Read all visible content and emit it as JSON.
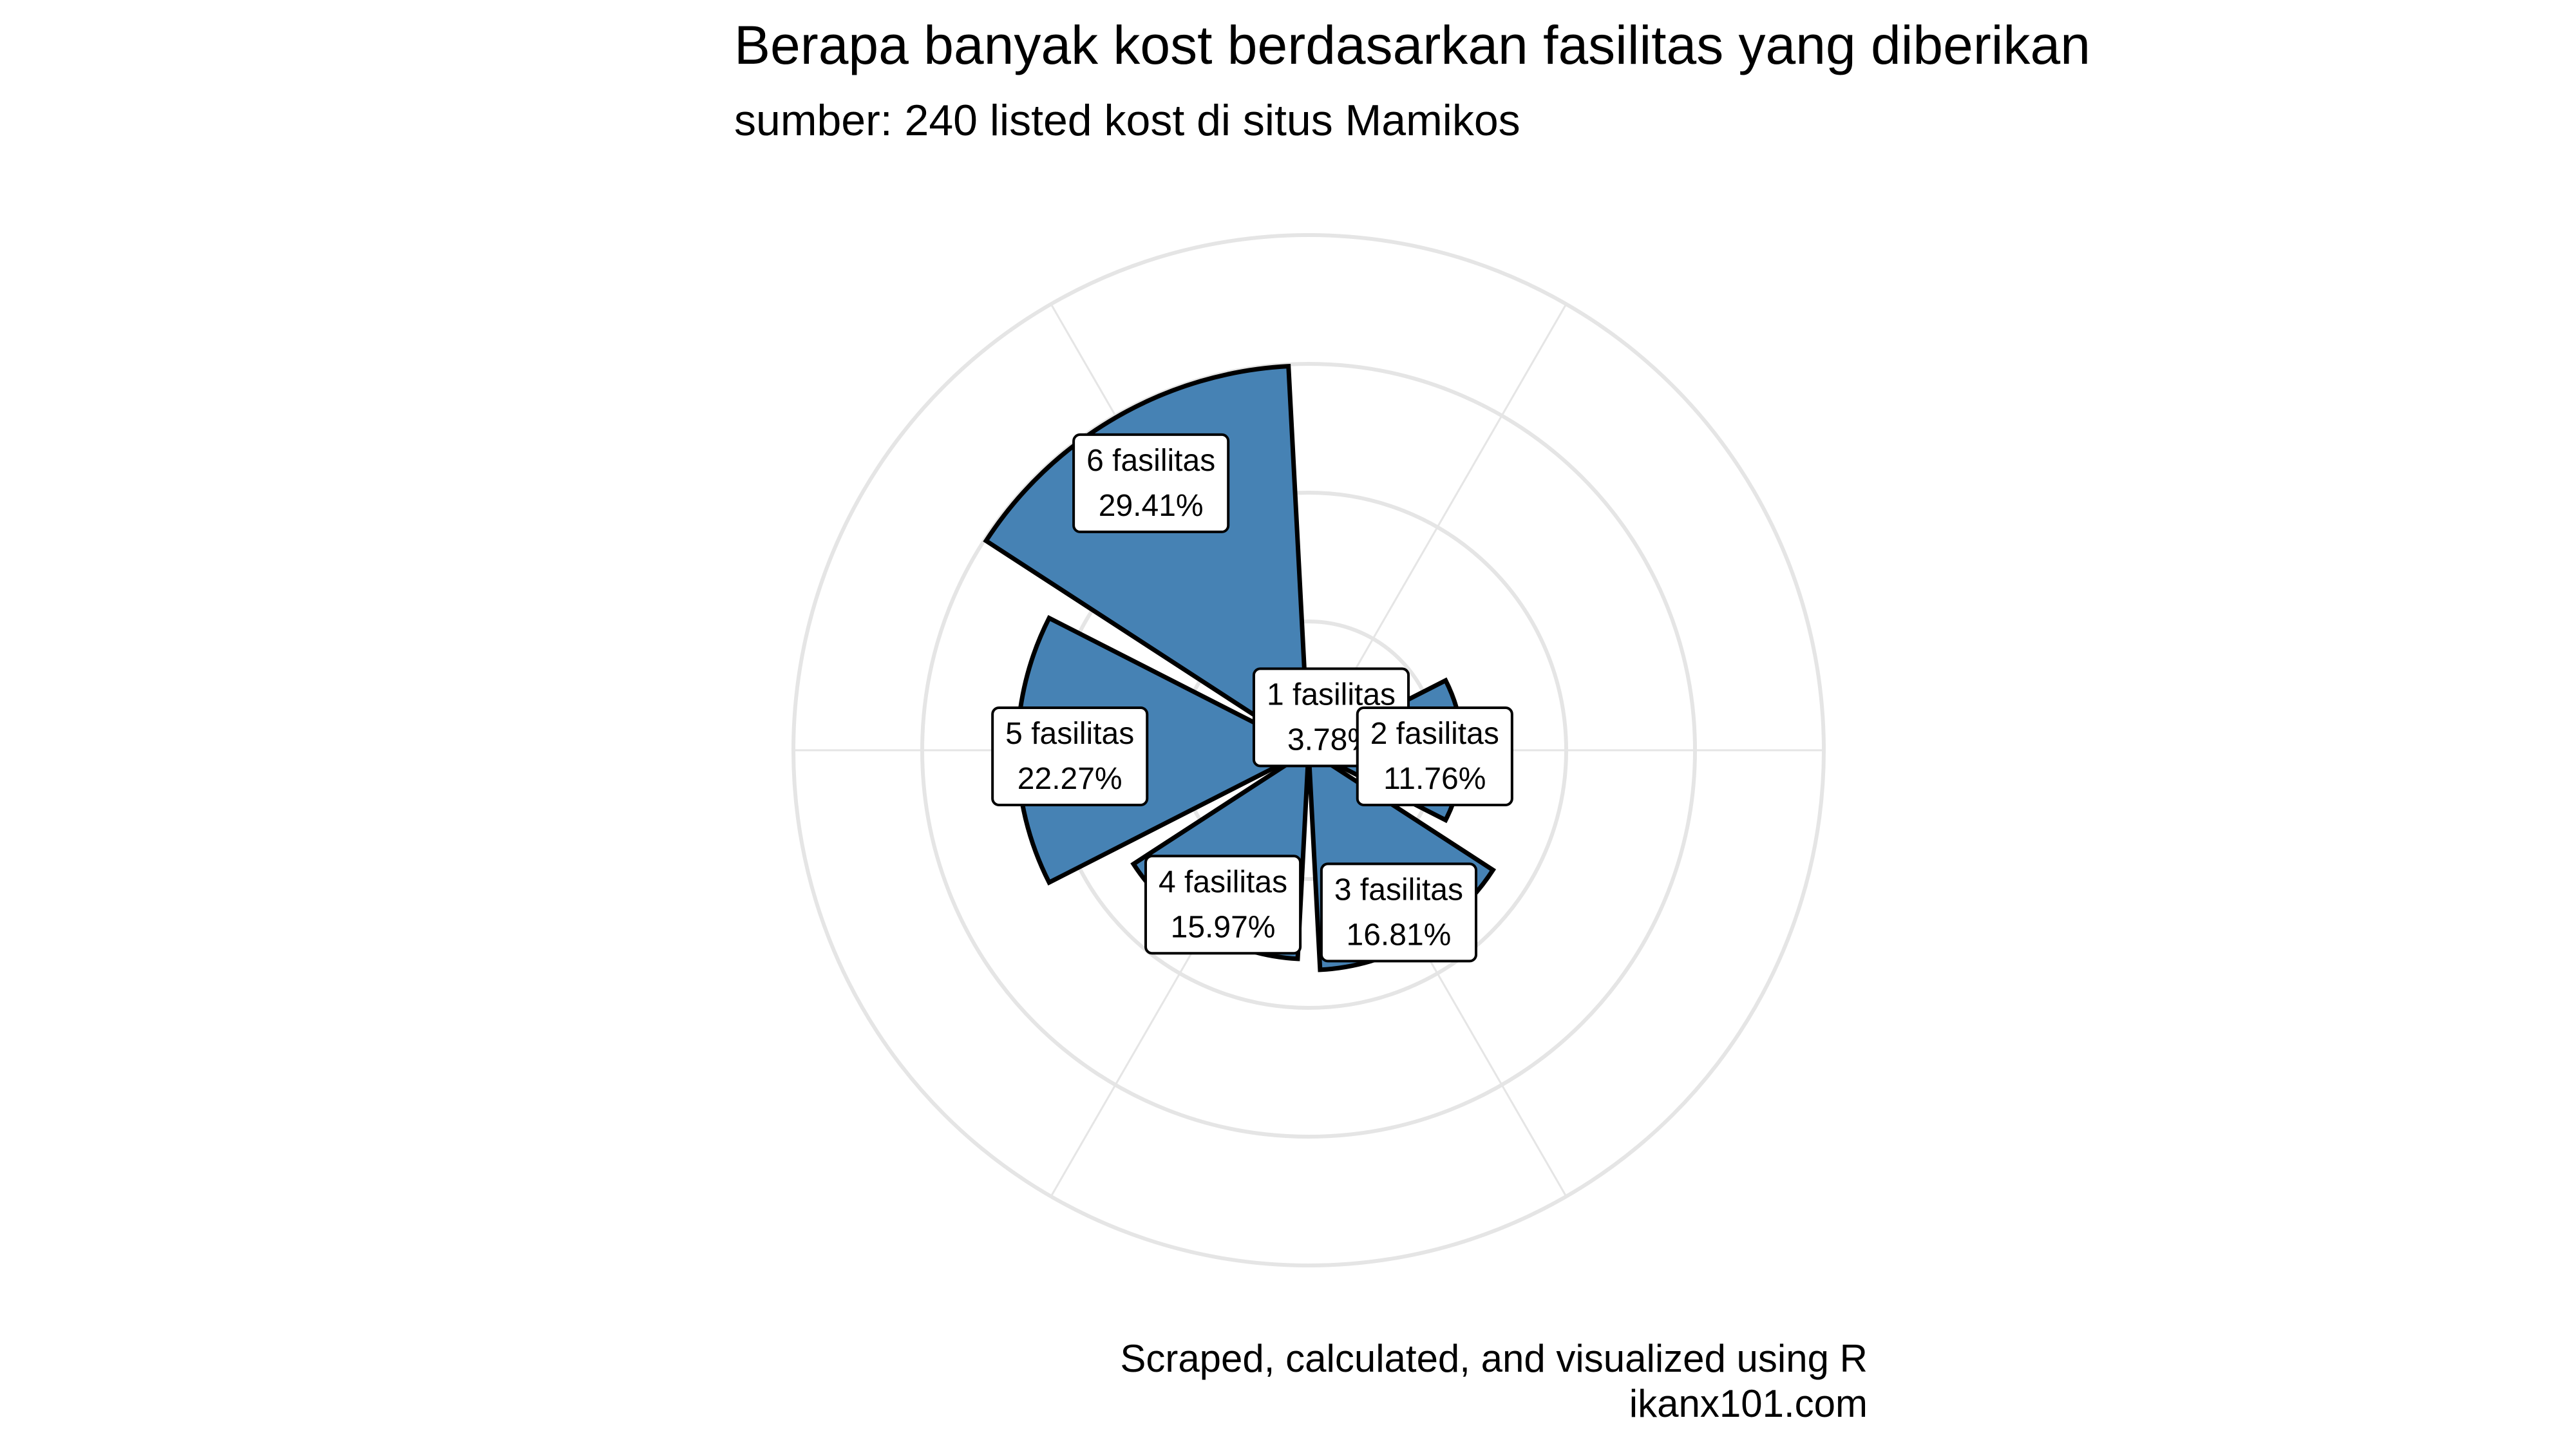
{
  "chart_data": {
    "type": "bar",
    "coord": "polar",
    "title": "Berapa banyak kost berdasarkan fasilitas yang diberikan",
    "subtitle": "sumber: 240 listed kost di situs Mamikos",
    "caption": [
      "Scraped, calculated, and visualized using R",
      "ikanx101.com"
    ],
    "categories": [
      "1 fasilitas",
      "2 fasilitas",
      "3 fasilitas",
      "4 fasilitas",
      "5 fasilitas",
      "6 fasilitas"
    ],
    "values": [
      3.78,
      11.76,
      16.81,
      15.97,
      22.27,
      29.41
    ],
    "value_labels": [
      "3.78%",
      "11.76%",
      "16.81%",
      "15.97%",
      "22.27%",
      "29.41%"
    ],
    "rlim": [
      0,
      39.4
    ],
    "grid": true,
    "legend": "none",
    "colors": {
      "fill": "#4682B4",
      "outline": "#000000",
      "grid": "#E5E5E5"
    }
  }
}
